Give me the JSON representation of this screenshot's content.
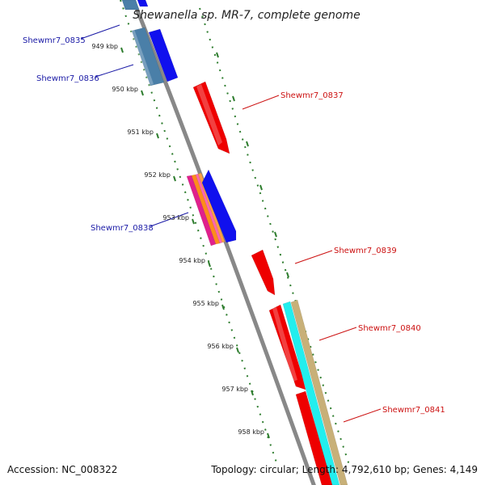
{
  "title": "Shewanella sp. MR-7, complete genome",
  "footer": {
    "accession": "Accession: NC_008322",
    "topology": "Topology: circular; Length: 4,792,610 bp; Genes: 4,149"
  },
  "ticks": [
    "949 kbp",
    "950 kbp",
    "951 kbp",
    "952 kbp",
    "953 kbp",
    "954 kbp",
    "955 kbp",
    "956 kbp",
    "957 kbp",
    "958 kbp"
  ],
  "gene_labels": {
    "reverse": [
      "Shewmr7_0835",
      "Shewmr7_0836",
      "Shewmr7_0838"
    ],
    "forward": [
      "Shewmr7_0837",
      "Shewmr7_0839",
      "Shewmr7_0840",
      "Shewmr7_0841"
    ]
  },
  "colors": {
    "backbone": "#888888",
    "tick": "#2e7d2e",
    "forward_cds": "#ee0000",
    "reverse_cds": "#1010ee",
    "cyan_feature": "#22eeee",
    "tan_feature": "#c8b078",
    "steel_feature": "#4a7fa8",
    "orange_feature": "#ff8c1a",
    "magenta_feature": "#e0208c"
  }
}
